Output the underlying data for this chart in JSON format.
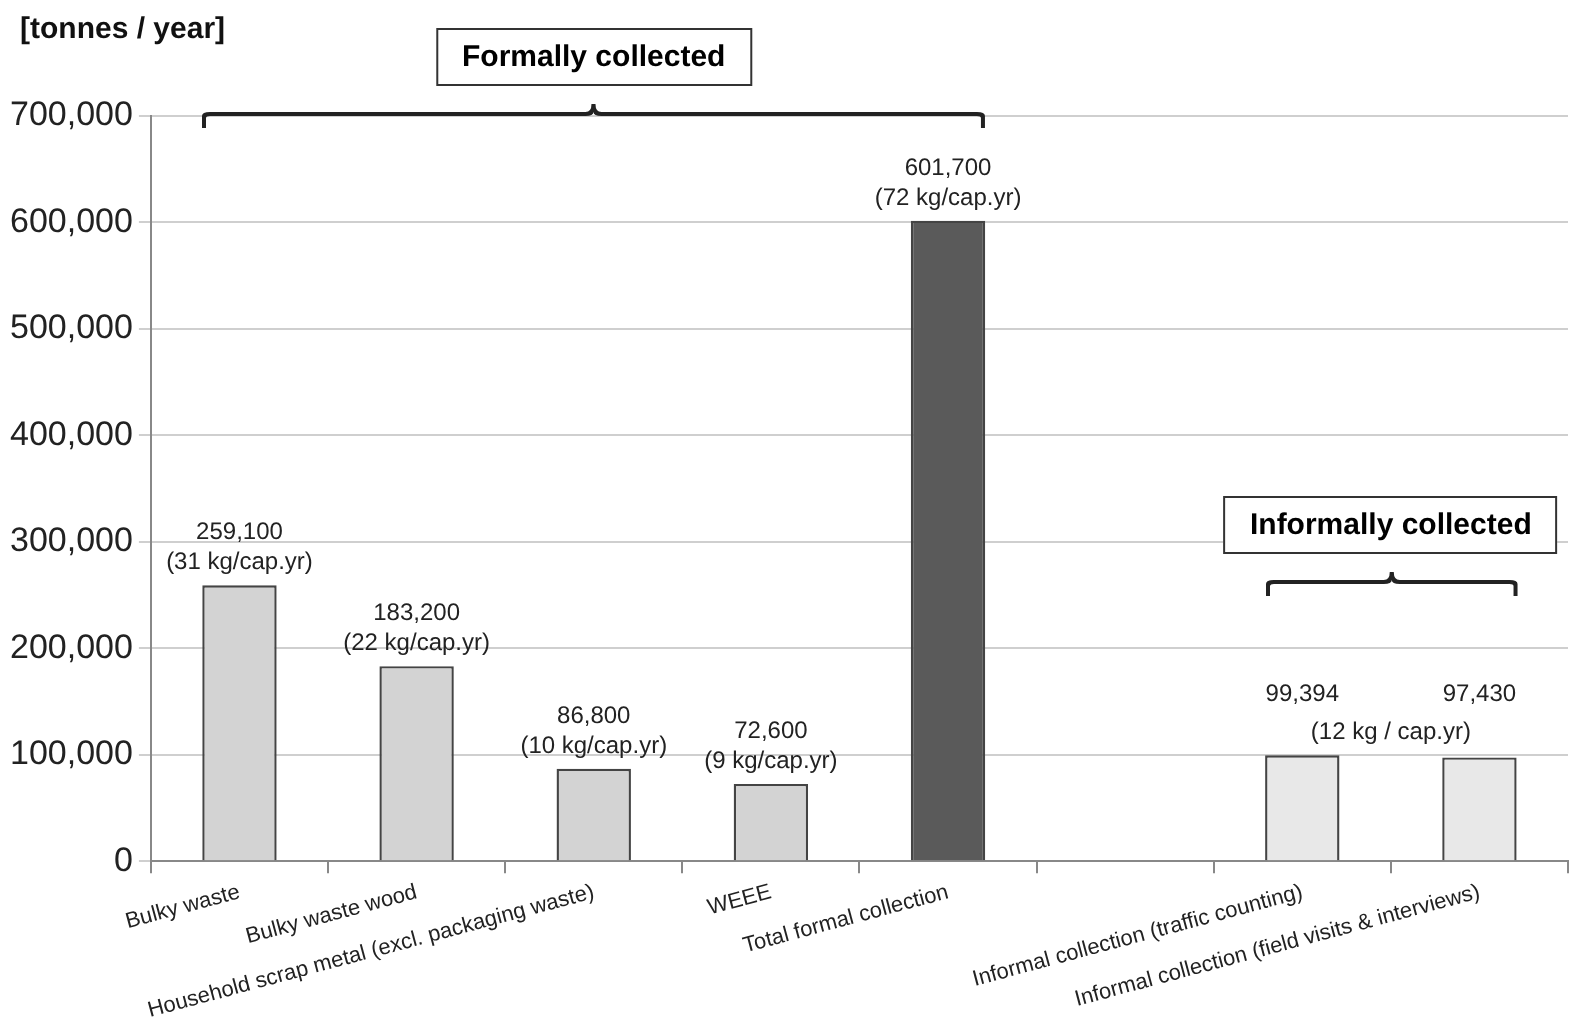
{
  "chart_data": {
    "type": "bar",
    "ylabel": "[tonnes / year]",
    "categories": [
      "Bulky waste",
      "Bulky waste wood",
      "Household scrap metal (excl. packaging waste)",
      "WEEE",
      "Total formal collection",
      null,
      "Informal collection (traffic counting)",
      "Informal collection (field visits & interviews)"
    ],
    "values": [
      259100,
      183200,
      86800,
      72600,
      601700,
      null,
      99394,
      97430
    ],
    "colors": [
      "#d3d3d3",
      "#d3d3d3",
      "#d3d3d3",
      "#d3d3d3",
      "#5a5a5a",
      "#d3d3d3",
      "#e8e8e8",
      "#e8e8e8"
    ],
    "value_labels": [
      "259,100\n(31 kg/cap.yr)",
      "183,200\n(22 kg/cap.yr)",
      "86,800\n(10 kg/cap.yr)",
      "72,600\n(9 kg/cap.yr)",
      "601,700\n(72 kg/cap.yr)",
      null,
      "99,394",
      "97,430"
    ],
    "annotations": [
      "Formally collected",
      "Informally collected",
      "(12 kg / cap.yr)"
    ],
    "ylim": [
      0,
      700000
    ],
    "yticks": [
      {
        "value": 0,
        "label": "0"
      },
      {
        "value": 100000,
        "label": "100,000"
      },
      {
        "value": 200000,
        "label": "200,000"
      },
      {
        "value": 300000,
        "label": "300,000"
      },
      {
        "value": 400000,
        "label": "400,000"
      },
      {
        "value": 500000,
        "label": "500,000"
      },
      {
        "value": 600000,
        "label": "600,000"
      },
      {
        "value": 700000,
        "label": "700,000"
      }
    ],
    "grid": "y",
    "legend": false
  }
}
